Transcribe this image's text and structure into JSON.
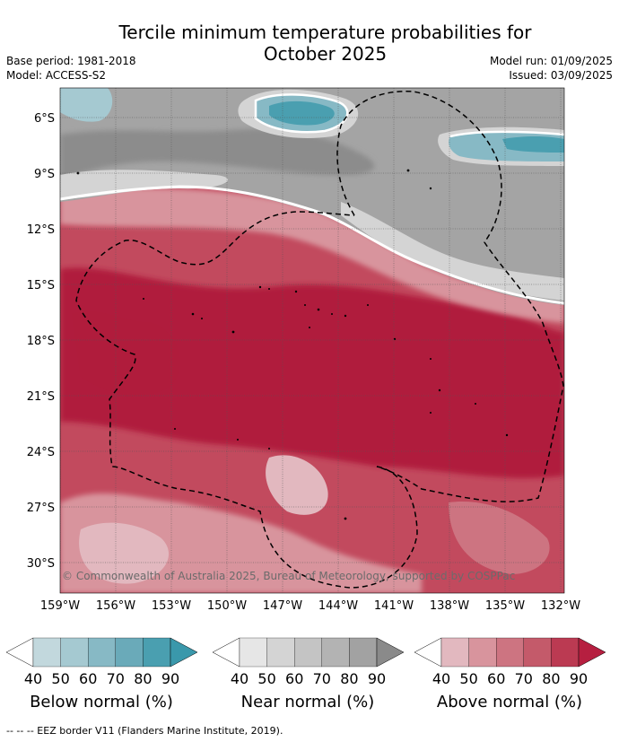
{
  "title_line1": "Tercile minimum temperature probabilities for",
  "title_line2": "October 2025",
  "base_period": "Base period: 1981-2018",
  "model": "Model: ACCESS-S2",
  "model_run": "Model run: 01/09/2025",
  "issued": "Issued: 03/09/2025",
  "credit": "© Commonwealth of Australia 2025, Bureau of Meteorology, supported by COSPPac",
  "lat_labels": [
    "6°S",
    "9°S",
    "12°S",
    "15°S",
    "18°S",
    "21°S",
    "24°S",
    "27°S",
    "30°S"
  ],
  "lon_labels": [
    "159°W",
    "156°W",
    "153°W",
    "150°W",
    "147°W",
    "144°W",
    "141°W",
    "138°W",
    "135°W",
    "132°W"
  ],
  "legends": [
    {
      "title": "Below normal (%)",
      "ticks": [
        "40",
        "50",
        "60",
        "70",
        "80",
        "90"
      ],
      "colors": [
        "#ffffff",
        "#c2d8dd",
        "#a5c9d1",
        "#87b9c5",
        "#6aaab9",
        "#4a9fb0",
        "#3a98ab"
      ]
    },
    {
      "title": "Near normal (%)",
      "ticks": [
        "40",
        "50",
        "60",
        "70",
        "80",
        "90"
      ],
      "colors": [
        "#ffffff",
        "#e6e6e6",
        "#d4d4d4",
        "#c4c4c4",
        "#b3b3b3",
        "#a2a2a2",
        "#8a8a8a"
      ]
    },
    {
      "title": "Above normal (%)",
      "ticks": [
        "40",
        "50",
        "60",
        "70",
        "80",
        "90"
      ],
      "colors": [
        "#ffffff",
        "#e2b8bf",
        "#d8949d",
        "#cd7481",
        "#c45a6a",
        "#bb3a52",
        "#b61f40"
      ]
    }
  ],
  "footer": "--  --  -- EEZ border V11 (Flanders Marine Institute, 2019)."
}
